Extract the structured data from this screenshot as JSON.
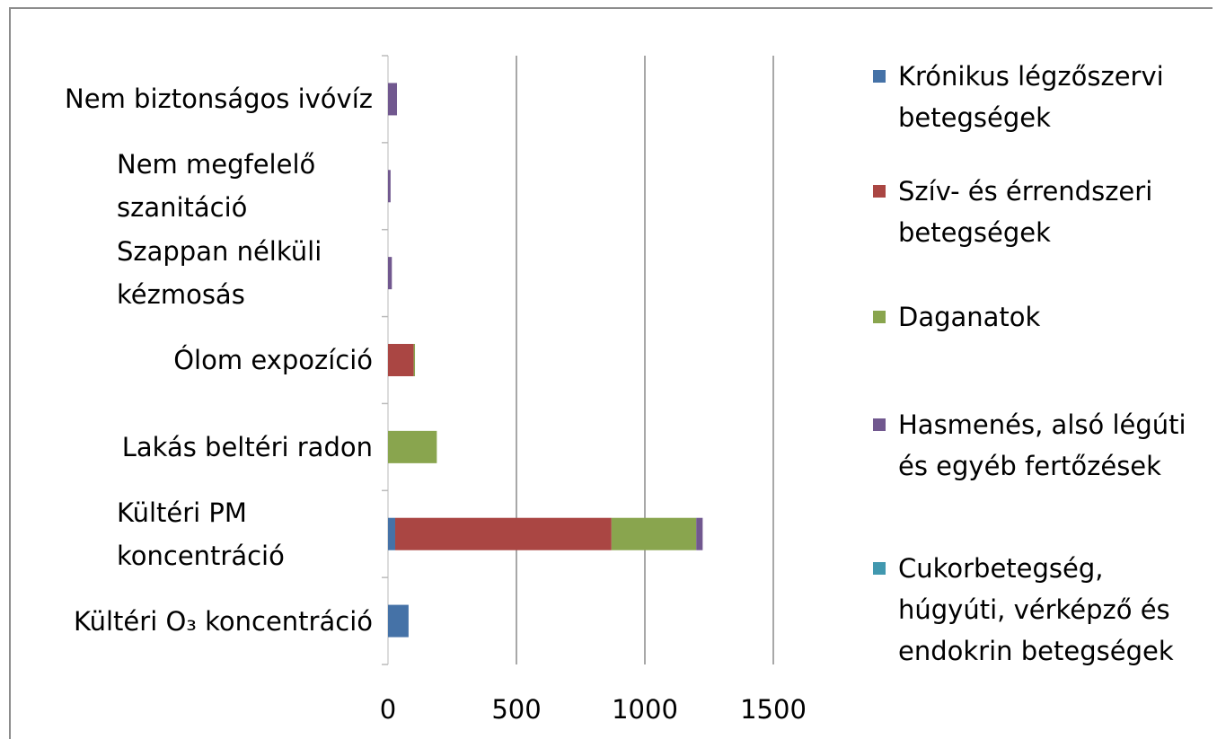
{
  "chart_data": {
    "type": "bar",
    "orientation": "horizontal",
    "stacked": true,
    "categories": [
      "Nem biztonságos ivóvíz",
      "Nem megfelelő szanitáció",
      "Szappan nélküli kézmosás",
      "Ólom expozíció",
      "Lakás beltéri radon",
      "Kültéri PM koncentráció",
      "Kültéri O₃ koncentráció"
    ],
    "series": [
      {
        "name": "Krónikus légzőszervi betegségek",
        "color": "#4572a7",
        "values": [
          0,
          0,
          0,
          0,
          0,
          28,
          80
        ]
      },
      {
        "name": "Szív- és érrendszeri betegségek",
        "color": "#aa4643",
        "values": [
          0,
          0,
          0,
          100,
          0,
          842,
          0
        ]
      },
      {
        "name": "Daganatok",
        "color": "#89a54e",
        "values": [
          0,
          0,
          0,
          5,
          190,
          330,
          0
        ]
      },
      {
        "name": "Hasmenés, alsó légúti és egyéb fertőzések",
        "color": "#71588f",
        "values": [
          35,
          10,
          15,
          0,
          0,
          25,
          0
        ]
      },
      {
        "name": "Cukorbetegség, húgyúti, vérképző és endokrin betegségek",
        "color": "#4198af",
        "values": [
          0,
          0,
          0,
          0,
          0,
          0,
          0
        ]
      }
    ],
    "xlim": [
      0,
      1500
    ],
    "xticks": [
      0,
      500,
      1000,
      1500
    ],
    "grid": true,
    "legend": "right"
  }
}
